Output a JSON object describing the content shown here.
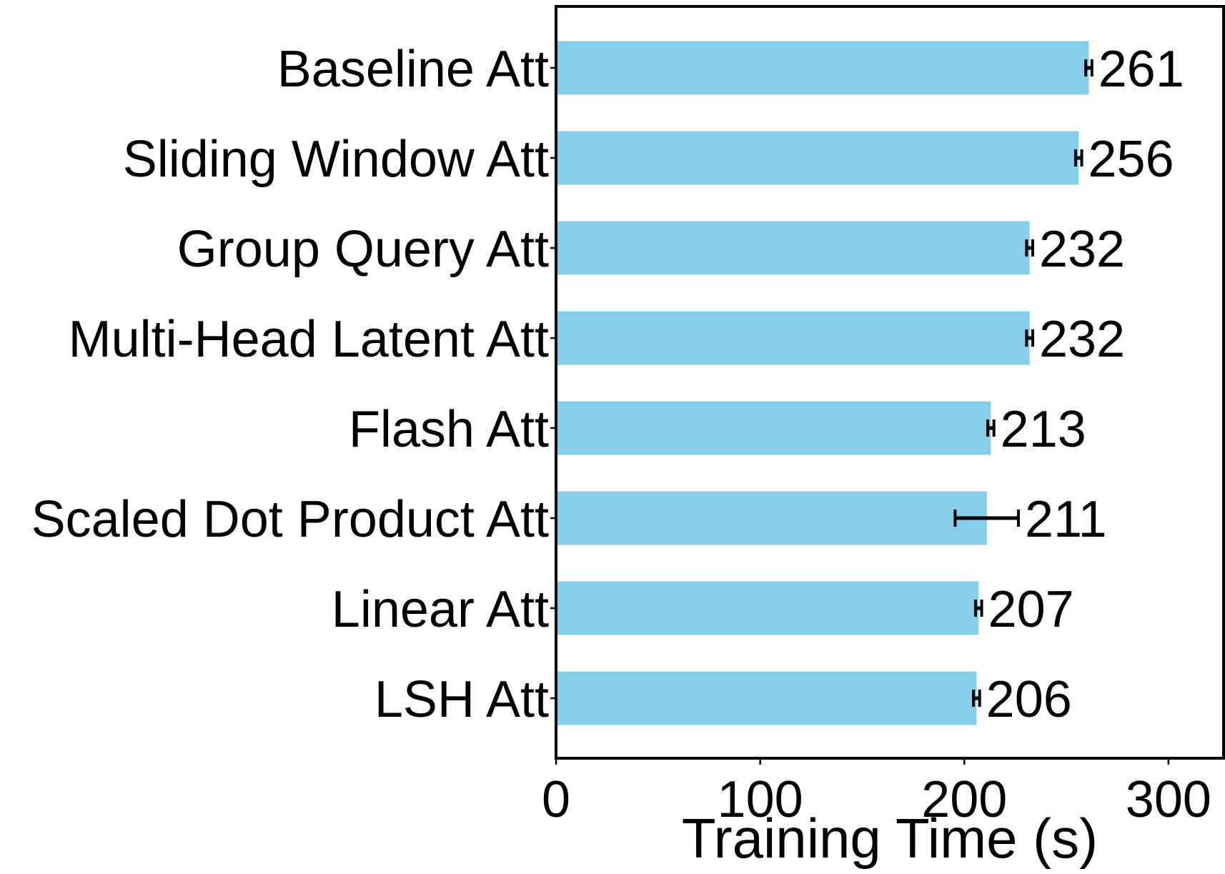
{
  "chart_data": {
    "type": "bar",
    "orientation": "horizontal",
    "title": "",
    "xlabel": "Training Time (s)",
    "ylabel": "",
    "xlim": [
      0,
      327
    ],
    "x_ticks": [
      0,
      100,
      200,
      300
    ],
    "grid": false,
    "bar_color": "#87CEEB",
    "categories": [
      "Baseline Att",
      "Sliding Window Att",
      "Group Query Att",
      "Multi-Head Latent Att",
      "Flash Att",
      "Scaled Dot Product Att",
      "Linear Att",
      "LSH Att"
    ],
    "values": [
      261,
      256,
      232,
      232,
      213,
      211,
      207,
      206
    ],
    "value_labels": [
      "261",
      "256",
      "232",
      "232",
      "213",
      "211",
      "207",
      "206"
    ],
    "error": [
      1.5,
      1.5,
      1.5,
      1.5,
      1.5,
      15.5,
      1.5,
      1.5
    ]
  }
}
